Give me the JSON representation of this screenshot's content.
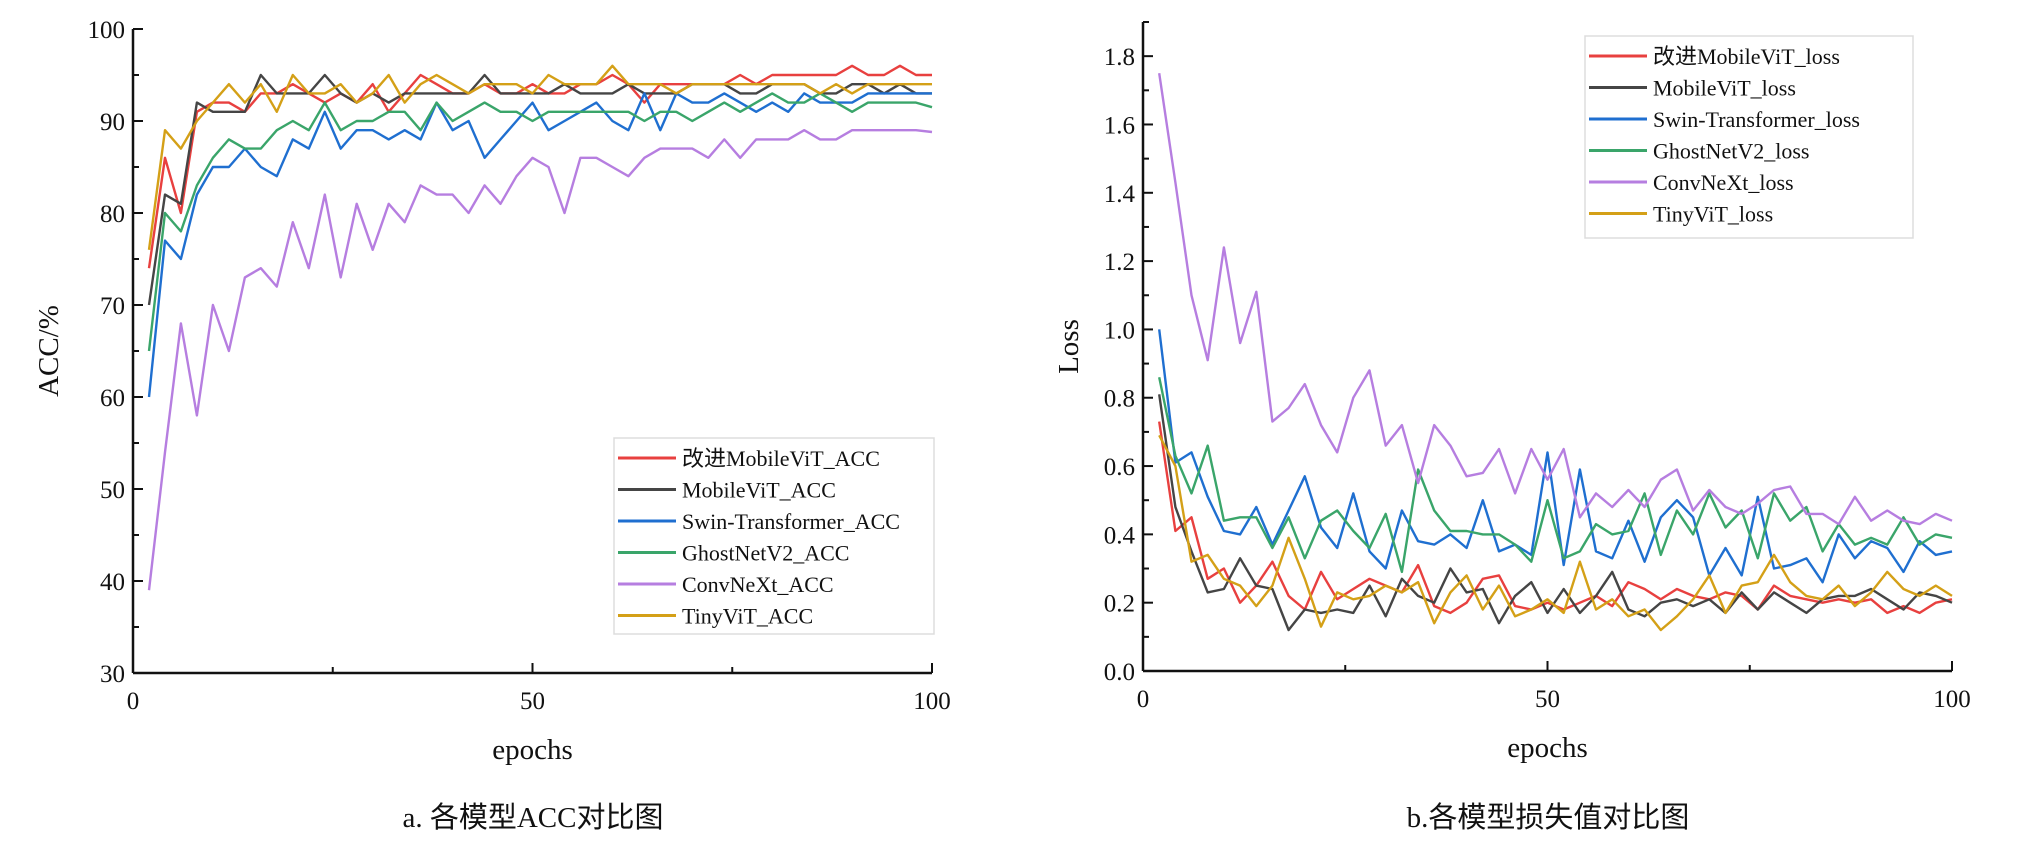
{
  "chart_data": [
    {
      "type": "line",
      "caption": "a. 各模型ACC对比图",
      "xlabel": "epochs",
      "ylabel": "ACC/%",
      "xlim": [
        0,
        100
      ],
      "ylim": [
        30,
        100
      ],
      "xticks": [
        "0",
        "50",
        "100"
      ],
      "yticks": [
        "30",
        "40",
        "50",
        "60",
        "70",
        "80",
        "90",
        "100"
      ],
      "legend_position": "bottom-right",
      "x_start": 2,
      "x_step": 2,
      "series": [
        {
          "name": "改进MobileViT_ACC",
          "color": "#e8403f",
          "values": [
            74,
            86,
            80,
            91,
            92,
            92,
            91,
            93,
            93,
            94,
            93,
            92,
            93,
            92,
            94,
            91,
            93,
            95,
            94,
            93,
            93,
            94,
            93,
            93,
            94,
            93,
            93,
            94,
            94,
            95,
            94,
            92,
            94,
            94,
            94,
            94,
            94,
            95,
            94,
            95,
            95,
            95,
            95,
            95,
            96,
            95,
            95,
            96,
            95,
            95
          ]
        },
        {
          "name": "MobileViT_ACC",
          "color": "#454545",
          "values": [
            70,
            82,
            81,
            92,
            91,
            91,
            91,
            95,
            93,
            93,
            93,
            95,
            93,
            92,
            93,
            92,
            93,
            93,
            93,
            93,
            93,
            95,
            93,
            93,
            93,
            93,
            94,
            93,
            93,
            93,
            94,
            93,
            93,
            93,
            94,
            94,
            94,
            93,
            93,
            94,
            94,
            94,
            93,
            93,
            94,
            94,
            93,
            94,
            93,
            93
          ]
        },
        {
          "name": "Swin-Transformer_ACC",
          "color": "#1f6fd0",
          "values": [
            60,
            77,
            75,
            82,
            85,
            85,
            87,
            85,
            84,
            88,
            87,
            91,
            87,
            89,
            89,
            88,
            89,
            88,
            92,
            89,
            90,
            86,
            88,
            90,
            92,
            89,
            90,
            91,
            92,
            90,
            89,
            93,
            89,
            93,
            92,
            92,
            93,
            92,
            91,
            92,
            91,
            93,
            92,
            92,
            92,
            93,
            93,
            93,
            93,
            93
          ]
        },
        {
          "name": "GhostNetV2_ACC",
          "color": "#3aa56a",
          "values": [
            65,
            80,
            78,
            83,
            86,
            88,
            87,
            87,
            89,
            90,
            89,
            92,
            89,
            90,
            90,
            91,
            91,
            89,
            92,
            90,
            91,
            92,
            91,
            91,
            90,
            91,
            91,
            91,
            91,
            91,
            91,
            90,
            91,
            91,
            90,
            91,
            92,
            91,
            92,
            93,
            92,
            92,
            93,
            92,
            91,
            92,
            92,
            92,
            92,
            91.5
          ]
        },
        {
          "name": "ConvNeXt_ACC",
          "color": "#b67ee0",
          "values": [
            39,
            54,
            68,
            58,
            70,
            65,
            73,
            74,
            72,
            79,
            74,
            82,
            73,
            81,
            76,
            81,
            79,
            83,
            82,
            82,
            80,
            83,
            81,
            84,
            86,
            85,
            80,
            86,
            86,
            85,
            84,
            86,
            87,
            87,
            87,
            86,
            88,
            86,
            88,
            88,
            88,
            89,
            88,
            88,
            89,
            89,
            89,
            89,
            89,
            88.8
          ]
        },
        {
          "name": "TinyViT_ACC",
          "color": "#d4a017",
          "values": [
            76,
            89,
            87,
            90,
            92,
            94,
            92,
            94,
            91,
            95,
            93,
            93,
            94,
            92,
            93,
            95,
            92,
            94,
            95,
            94,
            93,
            94,
            94,
            94,
            93,
            95,
            94,
            94,
            94,
            96,
            94,
            94,
            94,
            93,
            94,
            94,
            94,
            94,
            94,
            94,
            94,
            94,
            93,
            94,
            93,
            94,
            94,
            94,
            94,
            94
          ]
        }
      ]
    },
    {
      "type": "line",
      "caption": "b.各模型损失值对比图",
      "xlabel": "epochs",
      "ylabel": "Loss",
      "xlim": [
        0,
        100
      ],
      "ylim": [
        0,
        1.9
      ],
      "xticks": [
        "0",
        "50",
        "100"
      ],
      "yticks": [
        "0.0",
        "0.2",
        "0.4",
        "0.6",
        "0.8",
        "1.0",
        "1.2",
        "1.4",
        "1.6",
        "1.8"
      ],
      "legend_position": "top-right",
      "x_start": 2,
      "x_step": 2,
      "series": [
        {
          "name": "改进MobileViT_loss",
          "color": "#e8403f",
          "values": [
            0.73,
            0.41,
            0.45,
            0.27,
            0.3,
            0.2,
            0.25,
            0.32,
            0.22,
            0.18,
            0.29,
            0.21,
            0.24,
            0.27,
            0.25,
            0.23,
            0.31,
            0.19,
            0.17,
            0.2,
            0.27,
            0.28,
            0.19,
            0.18,
            0.2,
            0.18,
            0.2,
            0.22,
            0.19,
            0.26,
            0.24,
            0.21,
            0.24,
            0.22,
            0.21,
            0.23,
            0.22,
            0.18,
            0.25,
            0.22,
            0.21,
            0.2,
            0.21,
            0.2,
            0.21,
            0.17,
            0.19,
            0.17,
            0.2,
            0.21
          ]
        },
        {
          "name": "MobileViT_loss",
          "color": "#454545",
          "values": [
            0.81,
            0.48,
            0.35,
            0.23,
            0.24,
            0.33,
            0.25,
            0.24,
            0.12,
            0.18,
            0.17,
            0.18,
            0.17,
            0.25,
            0.16,
            0.27,
            0.22,
            0.2,
            0.3,
            0.23,
            0.24,
            0.14,
            0.22,
            0.26,
            0.17,
            0.24,
            0.17,
            0.22,
            0.29,
            0.18,
            0.16,
            0.2,
            0.21,
            0.19,
            0.21,
            0.17,
            0.23,
            0.18,
            0.23,
            0.2,
            0.17,
            0.21,
            0.22,
            0.22,
            0.24,
            0.21,
            0.18,
            0.23,
            0.22,
            0.2
          ]
        },
        {
          "name": "Swin-Transformer_loss",
          "color": "#1f6fd0",
          "values": [
            1.0,
            0.61,
            0.64,
            0.51,
            0.41,
            0.4,
            0.48,
            0.37,
            0.47,
            0.57,
            0.42,
            0.36,
            0.52,
            0.35,
            0.3,
            0.47,
            0.38,
            0.37,
            0.4,
            0.36,
            0.5,
            0.35,
            0.37,
            0.34,
            0.64,
            0.31,
            0.59,
            0.35,
            0.33,
            0.44,
            0.32,
            0.45,
            0.5,
            0.45,
            0.28,
            0.36,
            0.28,
            0.51,
            0.3,
            0.31,
            0.33,
            0.26,
            0.4,
            0.33,
            0.38,
            0.36,
            0.29,
            0.38,
            0.34,
            0.35
          ]
        },
        {
          "name": "GhostNetV2_loss",
          "color": "#3aa56a",
          "values": [
            0.86,
            0.63,
            0.52,
            0.66,
            0.44,
            0.45,
            0.45,
            0.36,
            0.45,
            0.33,
            0.44,
            0.47,
            0.41,
            0.36,
            0.46,
            0.29,
            0.59,
            0.47,
            0.41,
            0.41,
            0.4,
            0.4,
            0.37,
            0.32,
            0.5,
            0.33,
            0.35,
            0.43,
            0.4,
            0.41,
            0.52,
            0.34,
            0.47,
            0.4,
            0.52,
            0.42,
            0.47,
            0.33,
            0.52,
            0.44,
            0.48,
            0.35,
            0.43,
            0.37,
            0.39,
            0.37,
            0.45,
            0.37,
            0.4,
            0.39
          ]
        },
        {
          "name": "ConvNeXt_loss",
          "color": "#b67ee0",
          "values": [
            1.75,
            1.43,
            1.1,
            0.91,
            1.24,
            0.96,
            1.11,
            0.73,
            0.77,
            0.84,
            0.72,
            0.64,
            0.8,
            0.88,
            0.66,
            0.72,
            0.55,
            0.72,
            0.66,
            0.57,
            0.58,
            0.65,
            0.52,
            0.65,
            0.56,
            0.65,
            0.45,
            0.52,
            0.48,
            0.53,
            0.48,
            0.56,
            0.59,
            0.47,
            0.53,
            0.48,
            0.46,
            0.49,
            0.53,
            0.54,
            0.46,
            0.46,
            0.43,
            0.51,
            0.44,
            0.47,
            0.44,
            0.43,
            0.46,
            0.44
          ]
        },
        {
          "name": "TinyViT_loss",
          "color": "#d4a017",
          "values": [
            0.69,
            0.6,
            0.32,
            0.34,
            0.27,
            0.25,
            0.19,
            0.25,
            0.39,
            0.27,
            0.13,
            0.23,
            0.21,
            0.22,
            0.25,
            0.23,
            0.26,
            0.14,
            0.23,
            0.28,
            0.18,
            0.25,
            0.16,
            0.18,
            0.21,
            0.17,
            0.32,
            0.18,
            0.21,
            0.16,
            0.18,
            0.12,
            0.16,
            0.21,
            0.28,
            0.17,
            0.25,
            0.26,
            0.34,
            0.26,
            0.22,
            0.21,
            0.25,
            0.19,
            0.23,
            0.29,
            0.24,
            0.22,
            0.25,
            0.22
          ]
        }
      ]
    }
  ]
}
